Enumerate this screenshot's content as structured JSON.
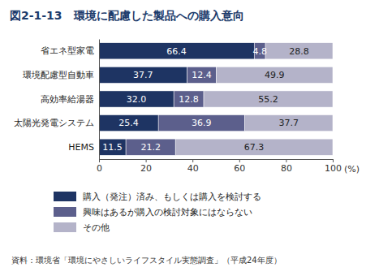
{
  "chart_data": {
    "type": "bar",
    "orientation": "horizontal",
    "stacked": true,
    "data_labels": true,
    "grid": false,
    "title": "図2-1-13　環境に配慮した製品への購入意向",
    "xlabel": "(%)",
    "source": "資料：環境省「環境にやさしいライフスタイル実態調査」（平成24年度）",
    "categories": [
      "省エネ型家電",
      "環境配慮型自動車",
      "高効率給湯器",
      "太陽光発電システム",
      "HEMS"
    ],
    "series": [
      {
        "name": "購入（発注）済み、もしくは購入を検討する",
        "color": "#1e3463",
        "values": [
          66.4,
          37.7,
          32.0,
          25.4,
          11.5
        ],
        "value_labels": [
          "66.4",
          "37.7",
          "32.0",
          "25.4",
          "11.5"
        ]
      },
      {
        "name": "興味はあるが購入の検討対象にはならない",
        "color": "#5c5f8c",
        "values": [
          4.8,
          12.4,
          12.8,
          36.9,
          21.2
        ],
        "value_labels": [
          "4.8",
          "12.4",
          "12.8",
          "36.9",
          "21.2"
        ]
      },
      {
        "name": "その他",
        "color": "#b4b3c9",
        "values": [
          28.8,
          49.9,
          55.2,
          37.7,
          67.3
        ],
        "value_labels": [
          "28.8",
          "49.9",
          "55.2",
          "37.7",
          "67.3"
        ]
      }
    ],
    "xlim": [
      0,
      100
    ],
    "xticks": [
      0,
      20,
      40,
      60,
      80,
      100
    ]
  }
}
